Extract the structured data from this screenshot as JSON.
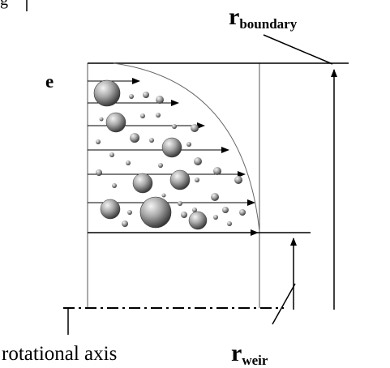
{
  "labels": {
    "top_left_fragment": "g",
    "e": "e",
    "r_boundary_main": "r",
    "r_boundary_sub": "boundary",
    "r_weir_main": "r",
    "r_weir_sub": "weir",
    "rotational_axis": "rotational axis"
  },
  "colors": {
    "line": "#000000",
    "frame": "#555555",
    "bubble_dark": "#3a3a3a",
    "bubble_light": "#f2f2f2"
  }
}
